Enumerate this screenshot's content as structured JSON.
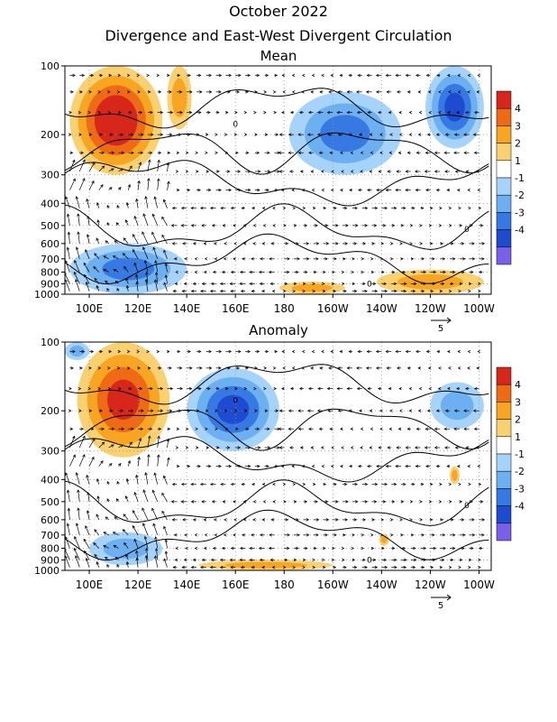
{
  "figure": {
    "title": "October 2022",
    "subtitle": "Divergence and East-West Divergent Circulation"
  },
  "chart_data": [
    {
      "type": "heatmap",
      "title": "Mean",
      "x_ticks": [
        "100E",
        "120E",
        "140E",
        "160E",
        "180",
        "160W",
        "140W",
        "120W",
        "100W"
      ],
      "x_tick_values_deg_east": [
        100,
        120,
        140,
        160,
        180,
        200,
        220,
        240,
        260
      ],
      "xlim_deg_east": [
        90,
        265
      ],
      "y_ticks": [
        "100",
        "200",
        "300",
        "400",
        "500",
        "600",
        "700",
        "800",
        "900",
        "1000"
      ],
      "y_tick_values_hpa": [
        100,
        200,
        300,
        400,
        500,
        600,
        700,
        800,
        900,
        1000
      ],
      "ylim_hpa": [
        100,
        1000
      ],
      "y_scale": "log",
      "colorbar": {
        "labels": [
          "4",
          "3",
          "2",
          "1",
          "-1",
          "-2",
          "-3",
          "-4"
        ],
        "colors": [
          "#d7261a",
          "#ef6a14",
          "#f8a521",
          "#fad170",
          "#ffffff",
          "#a6d3fa",
          "#6db0f2",
          "#3779e3",
          "#1e4bd0",
          "#7a5fe8"
        ]
      },
      "reference_vector": "5",
      "contour_label": "0",
      "fields": [
        {
          "sign": "positive",
          "lon": [
            92,
            130
          ],
          "p": [
            100,
            300
          ],
          "peak": 4.5
        },
        {
          "sign": "positive",
          "lon": [
            132,
            142
          ],
          "p": [
            100,
            190
          ],
          "peak": 2
        },
        {
          "sign": "negative",
          "lon": [
            182,
            228
          ],
          "p": [
            130,
            300
          ],
          "peak": -2.5
        },
        {
          "sign": "negative",
          "lon": [
            238,
            262
          ],
          "p": [
            100,
            230
          ],
          "peak": -3.5
        },
        {
          "sign": "positive",
          "lon": [
            218,
            262
          ],
          "p": [
            780,
            1000
          ],
          "peak": 2
        },
        {
          "sign": "positive",
          "lon": [
            178,
            205
          ],
          "p": [
            880,
            1000
          ],
          "peak": 1.5
        },
        {
          "sign": "negative",
          "lon": [
            92,
            140
          ],
          "p": [
            600,
            1000
          ],
          "peak": -2.5
        }
      ]
    },
    {
      "type": "heatmap",
      "title": "Anomaly",
      "x_ticks": [
        "100E",
        "120E",
        "140E",
        "160E",
        "180",
        "160W",
        "140W",
        "120W",
        "100W"
      ],
      "x_tick_values_deg_east": [
        100,
        120,
        140,
        160,
        180,
        200,
        220,
        240,
        260
      ],
      "xlim_deg_east": [
        90,
        265
      ],
      "y_ticks": [
        "100",
        "200",
        "300",
        "400",
        "500",
        "600",
        "700",
        "800",
        "900",
        "1000"
      ],
      "y_tick_values_hpa": [
        100,
        200,
        300,
        400,
        500,
        600,
        700,
        800,
        900,
        1000
      ],
      "ylim_hpa": [
        100,
        1000
      ],
      "y_scale": "log",
      "colorbar": {
        "labels": [
          "4",
          "3",
          "2",
          "1",
          "-1",
          "-2",
          "-3",
          "-4"
        ],
        "colors": [
          "#d7261a",
          "#ef6a14",
          "#f8a521",
          "#fad170",
          "#ffffff",
          "#a6d3fa",
          "#6db0f2",
          "#3779e3",
          "#1e4bd0",
          "#7a5fe8"
        ]
      },
      "reference_vector": "5",
      "contour_label": "0",
      "fields": [
        {
          "sign": "positive",
          "lon": [
            95,
            133
          ],
          "p": [
            100,
            320
          ],
          "peak": 3.5
        },
        {
          "sign": "negative",
          "lon": [
            140,
            178
          ],
          "p": [
            130,
            300
          ],
          "peak": -3.5
        },
        {
          "sign": "negative",
          "lon": [
            90,
            100
          ],
          "p": [
            100,
            120
          ],
          "peak": -2
        },
        {
          "sign": "negative",
          "lon": [
            240,
            262
          ],
          "p": [
            150,
            240
          ],
          "peak": -2
        },
        {
          "sign": "negative",
          "lon": [
            100,
            130
          ],
          "p": [
            680,
            950
          ],
          "peak": -2
        },
        {
          "sign": "positive",
          "lon": [
            145,
            200
          ],
          "p": [
            900,
            1000
          ],
          "peak": 1.5
        },
        {
          "sign": "positive",
          "lon": [
            219,
            223
          ],
          "p": [
            690,
            780
          ],
          "peak": 1.5
        },
        {
          "sign": "positive",
          "lon": [
            248,
            252
          ],
          "p": [
            350,
            420
          ],
          "peak": 1.5
        }
      ]
    }
  ]
}
